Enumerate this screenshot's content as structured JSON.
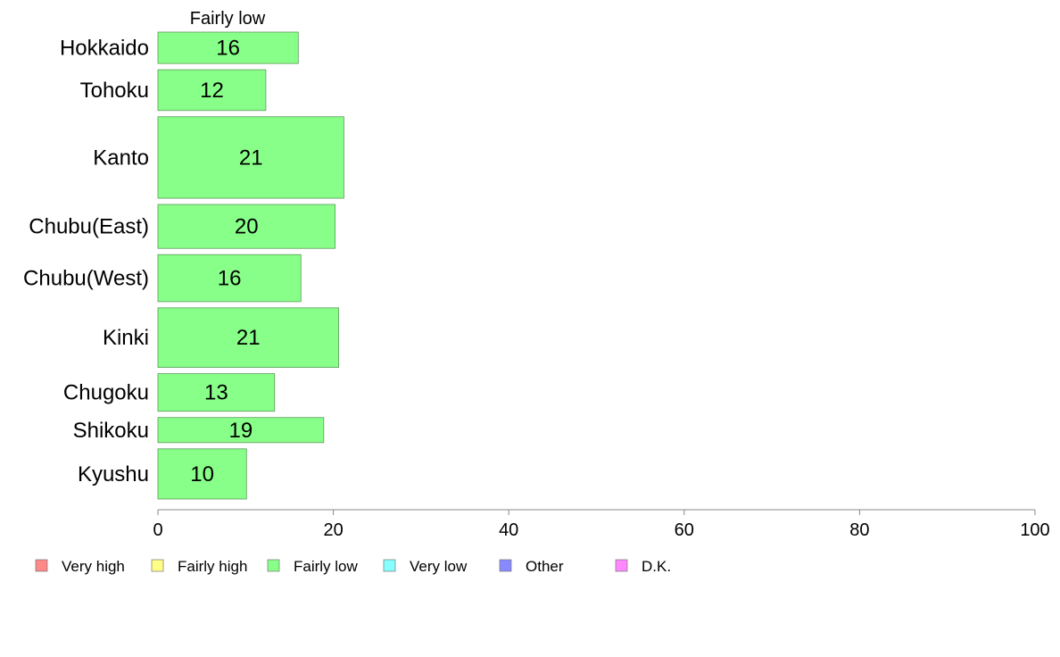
{
  "chart_data": {
    "type": "bar",
    "orientation": "horizontal",
    "column_header": "Fairly low",
    "categories": [
      "Hokkaido",
      "Tohoku",
      "Kanto",
      "Chubu(East)",
      "Chubu(West)",
      "Kinki",
      "Chugoku",
      "Shikoku",
      "Kyushu"
    ],
    "series": [
      {
        "name": "Fairly low",
        "color": "#88ff88",
        "values": [
          16,
          12.3,
          21.2,
          20.2,
          16.3,
          20.6,
          13.3,
          18.9,
          10.1
        ],
        "labels": [
          "16",
          "12",
          "21",
          "20",
          "16",
          "21",
          "13",
          "19",
          "10"
        ]
      }
    ],
    "relative_widths": [
      1,
      1.3,
      2.6,
      1.4,
      1.5,
      1.9,
      1.2,
      0.8,
      1.6
    ],
    "xlim": [
      0,
      100
    ],
    "x_ticks": [
      0,
      20,
      40,
      60,
      80,
      100
    ],
    "grid": false,
    "legend": {
      "position": "bottom",
      "entries": [
        {
          "label": "Very high",
          "color": "#ff8888"
        },
        {
          "label": "Fairly high",
          "color": "#ffff88"
        },
        {
          "label": "Fairly low",
          "color": "#88ff88"
        },
        {
          "label": "Very low",
          "color": "#88ffff"
        },
        {
          "label": "Other",
          "color": "#8888ff"
        },
        {
          "label": "D.K.",
          "color": "#ff88ff"
        }
      ]
    }
  }
}
